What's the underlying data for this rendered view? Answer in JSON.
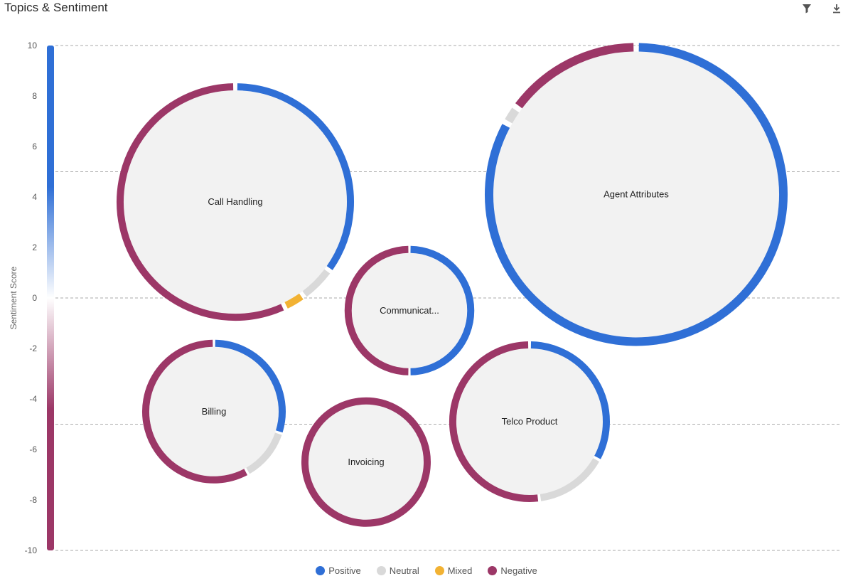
{
  "header": {
    "title": "Topics & Sentiment",
    "tools": [
      {
        "name": "filter-icon"
      },
      {
        "name": "download-icon"
      }
    ]
  },
  "colors": {
    "positive": "#2f6fd6",
    "neutral": "#d9d9d9",
    "mixed": "#f2b233",
    "negative": "#9c3767",
    "bubble_fill": "#f2f2f2",
    "grid": "#aaaaaa"
  },
  "chart_data": {
    "type": "bubble",
    "title": "Topics & Sentiment",
    "ylabel": "Sentiment Score",
    "ylim": [
      -10,
      10
    ],
    "yticks": [
      10,
      8,
      6,
      4,
      2,
      0,
      -2,
      -4,
      -6,
      -8,
      -10
    ],
    "gridlines": [
      10,
      5,
      0,
      -5,
      -10
    ],
    "legend_position": "bottom-center",
    "legend": [
      {
        "key": "positive",
        "label": "Positive"
      },
      {
        "key": "neutral",
        "label": "Neutral"
      },
      {
        "key": "mixed",
        "label": "Mixed"
      },
      {
        "key": "negative",
        "label": "Negative"
      }
    ],
    "bubbles": [
      {
        "label": "Call Handling",
        "score": 3.8,
        "breakdown": {
          "positive": 0.35,
          "neutral": 0.05,
          "mixed": 0.03,
          "negative": 0.57
        }
      },
      {
        "label": "Agent Attributes",
        "score": 4.1,
        "breakdown": {
          "positive": 0.83,
          "neutral": 0.02,
          "mixed": 0.0,
          "negative": 0.15
        }
      },
      {
        "label": "Communicat...",
        "score": -0.5,
        "breakdown": {
          "positive": 0.5,
          "neutral": 0.0,
          "mixed": 0.0,
          "negative": 0.5
        }
      },
      {
        "label": "Billing",
        "score": -4.5,
        "breakdown": {
          "positive": 0.3,
          "neutral": 0.12,
          "mixed": 0.0,
          "negative": 0.58
        }
      },
      {
        "label": "Invoicing",
        "score": -6.5,
        "breakdown": {
          "positive": 0.0,
          "neutral": 0.0,
          "mixed": 0.0,
          "negative": 1.0
        }
      },
      {
        "label": "Telco Product",
        "score": -4.9,
        "breakdown": {
          "positive": 0.33,
          "neutral": 0.15,
          "mixed": 0.0,
          "negative": 0.52
        }
      }
    ]
  }
}
